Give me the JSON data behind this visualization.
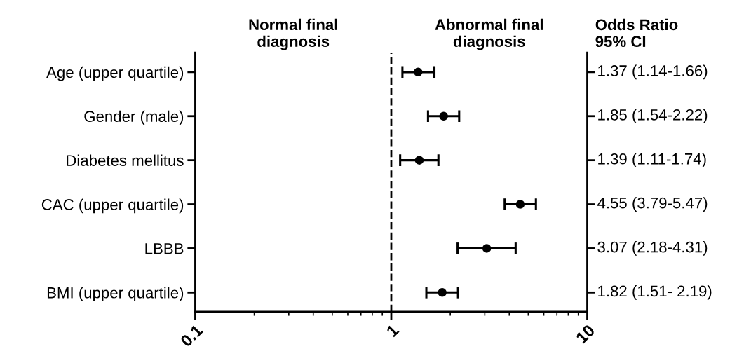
{
  "chart_data": {
    "type": "scatter",
    "orientation": "horizontal",
    "categories": [
      "Age (upper quartile)",
      "Gender (male)",
      "Diabetes mellitus",
      "CAC (upper quartile)",
      "LBBB",
      "BMI (upper quartile)"
    ],
    "values": [
      1.37,
      1.85,
      1.39,
      4.55,
      3.07,
      1.82
    ],
    "errors": [
      [
        1.14,
        1.66
      ],
      [
        1.54,
        2.22
      ],
      [
        1.11,
        1.74
      ],
      [
        3.79,
        5.47
      ],
      [
        2.18,
        4.31
      ],
      [
        1.51,
        2.19
      ]
    ],
    "value_labels": [
      "1.37 (1.14-1.66)",
      "1.85 (1.54-2.22)",
      "1.39 (1.11-1.74)",
      "4.55 (3.79-5.47)",
      "3.07 (2.18-4.31)",
      "1.82 (1.51- 2.19)"
    ],
    "color": "#000000",
    "marker": "circle",
    "log": "x",
    "xlim": [
      0.1,
      10
    ],
    "xticks": [
      0.1,
      1,
      10
    ],
    "ref_lines": [
      {
        "axis": "x",
        "value": 1,
        "line_style": "dashed",
        "color": "#000000"
      }
    ],
    "annotations": [
      "Normal final\ndiagnosis",
      "Abnormal final\ndiagnosis",
      "Odds Ratio\n95% CI"
    ],
    "grid": false,
    "legend": false
  }
}
